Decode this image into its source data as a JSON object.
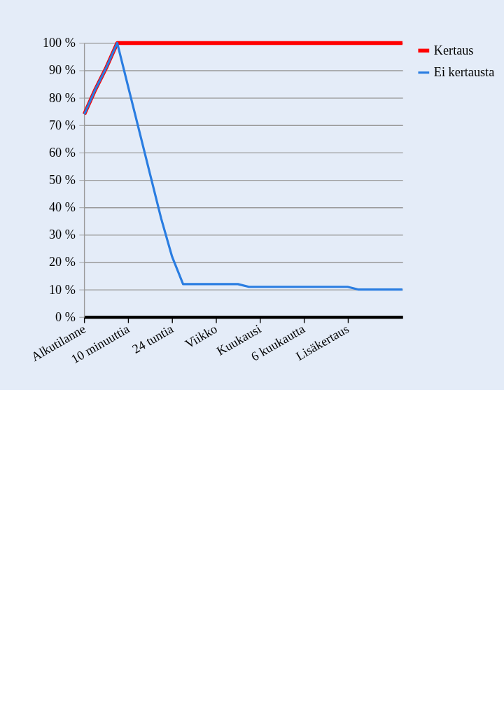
{
  "chart_data": {
    "type": "line",
    "categories": [
      "Alkutilanne",
      null,
      null,
      null,
      "10 minuuttia",
      null,
      null,
      null,
      "24 tuntia",
      null,
      null,
      null,
      "Viikko",
      null,
      null,
      null,
      "Kuukausi",
      null,
      null,
      null,
      "6 kuukautta",
      null,
      null,
      null,
      "Lisäkertaus",
      null,
      null,
      null,
      null,
      null
    ],
    "ylim": [
      0,
      100
    ],
    "yticks": [
      {
        "value": 0,
        "label": "0 %"
      },
      {
        "value": 10,
        "label": "10 %"
      },
      {
        "value": 20,
        "label": "20 %"
      },
      {
        "value": 30,
        "label": "30 %"
      },
      {
        "value": 40,
        "label": "40 %"
      },
      {
        "value": 50,
        "label": "50 %"
      },
      {
        "value": 60,
        "label": "60 %"
      },
      {
        "value": 70,
        "label": "70 %"
      },
      {
        "value": 80,
        "label": "80 %"
      },
      {
        "value": 90,
        "label": "90 %"
      },
      {
        "value": 100,
        "label": "100 %"
      }
    ],
    "grid": "y",
    "legend": "right",
    "marker": "none",
    "line_style": "solid",
    "series": [
      {
        "name": "Kertaus",
        "color": "#ff0000",
        "values": [
          74,
          83,
          91,
          100,
          100,
          100,
          100,
          100,
          100,
          100,
          100,
          100,
          100,
          100,
          100,
          100,
          100,
          100,
          100,
          100,
          100,
          100,
          100,
          100,
          100,
          100,
          100,
          100,
          100,
          100
        ]
      },
      {
        "name": "Ei kertausta",
        "color": "#2a7de1",
        "values": [
          74,
          83,
          91,
          100,
          84,
          68,
          52,
          36,
          22,
          12,
          12,
          12,
          12,
          12,
          12,
          11,
          11,
          11,
          11,
          11,
          11,
          11,
          11,
          11,
          11,
          10,
          10,
          10,
          10,
          10
        ]
      }
    ]
  }
}
